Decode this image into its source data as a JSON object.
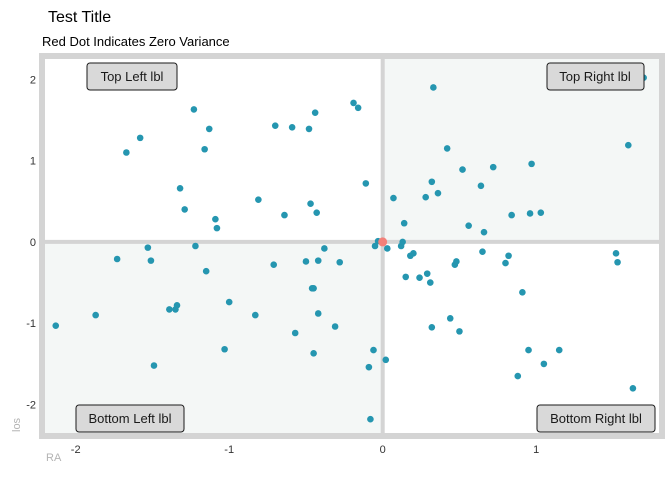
{
  "chart_data": {
    "type": "scatter",
    "title": "Test Title",
    "subtitle": "Red Dot Indicates Zero Variance",
    "xlabel": "RA",
    "ylabel": "los",
    "xlim": [
      -2.2,
      1.8
    ],
    "ylim": [
      -2.35,
      2.25
    ],
    "x_ticks": [
      -2,
      -1,
      0,
      1
    ],
    "x_tick_labels": [
      "-2",
      "-1",
      "0",
      "1"
    ],
    "y_ticks": [
      -2,
      -1,
      0,
      1,
      2
    ],
    "y_tick_labels": [
      "-2",
      "-1",
      "0",
      "1",
      "2"
    ],
    "grid": false,
    "quadrant_labels": {
      "top_left": "Top Left lbl",
      "top_right": "Top Right lbl",
      "bottom_left": "Bottom Left lbl",
      "bottom_right": "Bottom Right lbl"
    },
    "colors": {
      "point": "#2596b0",
      "zero_point": "#f28079",
      "panel_border": "#d4d4d4",
      "shaded_quadrant": "#f4f7f6",
      "axis_cross": "#d4d4d4",
      "label_fill": "#d9d9d9"
    },
    "zero_point": {
      "x": 0,
      "y": 0
    },
    "points": [
      {
        "x": -2.13,
        "y": -1.03
      },
      {
        "x": -1.87,
        "y": -0.9
      },
      {
        "x": -1.73,
        "y": -0.21
      },
      {
        "x": -1.67,
        "y": 1.1
      },
      {
        "x": -1.58,
        "y": 1.28
      },
      {
        "x": -1.53,
        "y": -0.07
      },
      {
        "x": -1.51,
        "y": -0.23
      },
      {
        "x": -1.49,
        "y": -1.52
      },
      {
        "x": -1.39,
        "y": -0.83
      },
      {
        "x": -1.35,
        "y": -0.83
      },
      {
        "x": -1.34,
        "y": -0.78
      },
      {
        "x": -1.32,
        "y": 0.66
      },
      {
        "x": -1.29,
        "y": 0.4
      },
      {
        "x": -1.23,
        "y": 1.63
      },
      {
        "x": -1.22,
        "y": -0.05
      },
      {
        "x": -1.16,
        "y": 1.14
      },
      {
        "x": -1.15,
        "y": -0.36
      },
      {
        "x": -1.13,
        "y": 1.39
      },
      {
        "x": -1.09,
        "y": 0.28
      },
      {
        "x": -1.08,
        "y": 0.17
      },
      {
        "x": -1.03,
        "y": -1.32
      },
      {
        "x": -1.0,
        "y": -0.74
      },
      {
        "x": -0.83,
        "y": -0.9
      },
      {
        "x": -0.81,
        "y": 0.52
      },
      {
        "x": -0.71,
        "y": -0.28
      },
      {
        "x": -0.7,
        "y": 1.43
      },
      {
        "x": -0.64,
        "y": 0.33
      },
      {
        "x": -0.59,
        "y": 1.41
      },
      {
        "x": -0.57,
        "y": -1.12
      },
      {
        "x": -0.5,
        "y": -0.24
      },
      {
        "x": -0.48,
        "y": 1.39
      },
      {
        "x": -0.47,
        "y": 0.47
      },
      {
        "x": -0.46,
        "y": -0.57
      },
      {
        "x": -0.45,
        "y": -0.57
      },
      {
        "x": -0.45,
        "y": -1.37
      },
      {
        "x": -0.44,
        "y": 1.59
      },
      {
        "x": -0.43,
        "y": 0.36
      },
      {
        "x": -0.42,
        "y": -0.23
      },
      {
        "x": -0.42,
        "y": -0.88
      },
      {
        "x": -0.38,
        "y": -0.08
      },
      {
        "x": -0.31,
        "y": -1.04
      },
      {
        "x": -0.28,
        "y": -0.25
      },
      {
        "x": -0.19,
        "y": 1.71
      },
      {
        "x": -0.16,
        "y": 1.65
      },
      {
        "x": -0.11,
        "y": 0.72
      },
      {
        "x": -0.09,
        "y": -1.54
      },
      {
        "x": -0.08,
        "y": -2.18
      },
      {
        "x": -0.06,
        "y": -1.33
      },
      {
        "x": -0.05,
        "y": -0.05
      },
      {
        "x": -0.03,
        "y": 0.01
      },
      {
        "x": 0.02,
        "y": -1.45
      },
      {
        "x": 0.03,
        "y": -0.08
      },
      {
        "x": 0.07,
        "y": 0.54
      },
      {
        "x": 0.12,
        "y": -0.05
      },
      {
        "x": 0.13,
        "y": 0.0
      },
      {
        "x": 0.14,
        "y": 0.23
      },
      {
        "x": 0.15,
        "y": -0.43
      },
      {
        "x": 0.18,
        "y": -0.17
      },
      {
        "x": 0.2,
        "y": -0.14
      },
      {
        "x": 0.24,
        "y": -0.44
      },
      {
        "x": 0.28,
        "y": 0.55
      },
      {
        "x": 0.29,
        "y": -0.39
      },
      {
        "x": 0.31,
        "y": -0.5
      },
      {
        "x": 0.32,
        "y": 0.74
      },
      {
        "x": 0.32,
        "y": -1.05
      },
      {
        "x": 0.33,
        "y": 1.9
      },
      {
        "x": 0.36,
        "y": 0.6
      },
      {
        "x": 0.42,
        "y": 1.15
      },
      {
        "x": 0.44,
        "y": -0.94
      },
      {
        "x": 0.47,
        "y": -0.28
      },
      {
        "x": 0.48,
        "y": -0.24
      },
      {
        "x": 0.5,
        "y": -1.1
      },
      {
        "x": 0.52,
        "y": 0.89
      },
      {
        "x": 0.56,
        "y": 0.2
      },
      {
        "x": 0.64,
        "y": 0.69
      },
      {
        "x": 0.65,
        "y": -0.12
      },
      {
        "x": 0.66,
        "y": 0.12
      },
      {
        "x": 0.72,
        "y": 0.92
      },
      {
        "x": 0.8,
        "y": -0.26
      },
      {
        "x": 0.82,
        "y": -0.17
      },
      {
        "x": 0.84,
        "y": 0.33
      },
      {
        "x": 0.88,
        "y": -1.65
      },
      {
        "x": 0.91,
        "y": -0.62
      },
      {
        "x": 0.95,
        "y": -1.33
      },
      {
        "x": 0.96,
        "y": 0.35
      },
      {
        "x": 0.97,
        "y": 0.96
      },
      {
        "x": 1.03,
        "y": 0.36
      },
      {
        "x": 1.05,
        "y": -1.5
      },
      {
        "x": 1.15,
        "y": -1.33
      },
      {
        "x": 1.52,
        "y": -0.14
      },
      {
        "x": 1.53,
        "y": -0.25
      },
      {
        "x": 1.6,
        "y": 1.19
      },
      {
        "x": 1.63,
        "y": -1.8
      },
      {
        "x": 1.7,
        "y": 2.02
      }
    ]
  }
}
